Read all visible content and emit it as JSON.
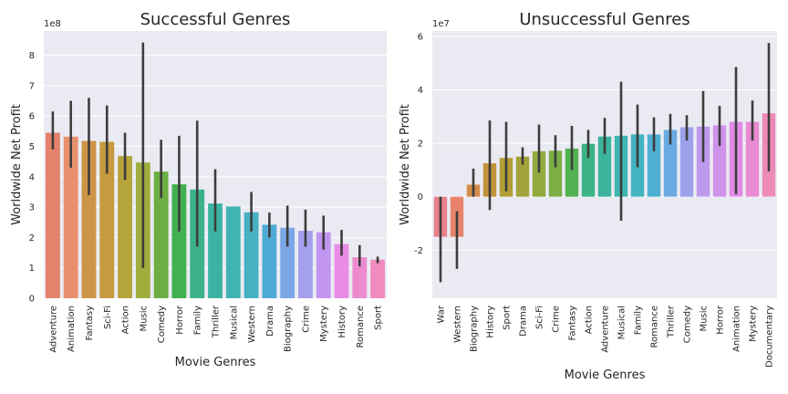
{
  "chart_data": [
    {
      "type": "bar",
      "title": "Successful Genres",
      "xlabel": "Movie Genres",
      "ylabel": "Worldwide Net Profit",
      "scale_label": "1e8",
      "ylim": [
        0,
        8.8
      ],
      "yticks": [
        0,
        1,
        2,
        3,
        4,
        5,
        6,
        7,
        8
      ],
      "grid": true,
      "categories": [
        "Adventure",
        "Animation",
        "Fantasy",
        "Sci-Fi",
        "Action",
        "Music",
        "Comedy",
        "Horror",
        "Family",
        "Thriller",
        "Musical",
        "Western",
        "Drama",
        "Biography",
        "Crime",
        "Mystery",
        "History",
        "Romance",
        "Sport"
      ],
      "values": [
        5.45,
        5.32,
        5.18,
        5.15,
        4.68,
        4.47,
        4.17,
        3.75,
        3.58,
        3.12,
        3.02,
        2.83,
        2.42,
        2.32,
        2.22,
        2.17,
        1.78,
        1.35,
        1.27
      ],
      "error_low": [
        4.9,
        4.3,
        3.4,
        4.1,
        3.9,
        1.0,
        3.3,
        2.2,
        1.7,
        2.2,
        3.02,
        2.2,
        2.0,
        1.7,
        1.7,
        1.6,
        1.4,
        1.05,
        1.15
      ],
      "error_high": [
        6.15,
        6.5,
        6.6,
        6.35,
        5.45,
        8.42,
        5.22,
        5.35,
        5.85,
        4.25,
        3.02,
        3.5,
        2.82,
        3.05,
        2.92,
        2.72,
        2.25,
        1.75,
        1.37
      ],
      "colors": [
        "#e5826b",
        "#e8906e",
        "#cd9346",
        "#c69a3e",
        "#b5a33c",
        "#9fad3d",
        "#6dae44",
        "#41b04f",
        "#3cb28a",
        "#3cb3a2",
        "#40b4b2",
        "#47b0c3",
        "#4eaad6",
        "#7ba6e6",
        "#a5a0ee",
        "#c195ef",
        "#e88ce7",
        "#ec8ccf",
        "#ef8bbd"
      ]
    },
    {
      "type": "bar",
      "title": "Unsuccessful Genres",
      "xlabel": "Movie Genres",
      "ylabel": "Worldwide Net Profit",
      "scale_label": "1e7",
      "ylim": [
        -3.8,
        6.2
      ],
      "yticks": [
        -2,
        0,
        2,
        4,
        6
      ],
      "grid": true,
      "categories": [
        "War",
        "Western",
        "Biography",
        "History",
        "Sport",
        "Drama",
        "Sci-Fi",
        "Crime",
        "Fantasy",
        "Action",
        "Adventure",
        "Musical",
        "Family",
        "Romance",
        "Thriller",
        "Comedy",
        "Music",
        "Horror",
        "Animation",
        "Mystery",
        "Documentary"
      ],
      "values": [
        -1.5,
        -1.5,
        0.45,
        1.25,
        1.45,
        1.5,
        1.7,
        1.72,
        1.8,
        1.98,
        2.25,
        2.28,
        2.33,
        2.33,
        2.5,
        2.6,
        2.62,
        2.67,
        2.8,
        2.8,
        3.12
      ],
      "error_low": [
        -3.2,
        -2.7,
        0.0,
        -0.5,
        0.2,
        1.2,
        0.9,
        1.1,
        1.0,
        1.45,
        1.6,
        -0.9,
        1.1,
        1.7,
        1.95,
        2.1,
        1.3,
        1.9,
        0.1,
        2.1,
        0.95
      ],
      "error_high": [
        0.0,
        -0.55,
        1.05,
        2.85,
        2.8,
        1.85,
        2.7,
        2.3,
        2.65,
        2.5,
        2.95,
        4.3,
        3.45,
        2.97,
        3.1,
        3.05,
        3.95,
        3.4,
        4.85,
        3.6,
        5.75
      ],
      "colors": [
        "#e8808a",
        "#e8846c",
        "#d58b4a",
        "#c1943c",
        "#b29d37",
        "#a3a33a",
        "#92a93e",
        "#7bae45",
        "#52b150",
        "#3cb487",
        "#3bb39d",
        "#3db5b0",
        "#44b3c1",
        "#4eafd3",
        "#6aaae2",
        "#9ba2ea",
        "#bd99ed",
        "#cf92ea",
        "#e18ae6",
        "#ea8ad2",
        "#ee8ab7"
      ]
    }
  ]
}
